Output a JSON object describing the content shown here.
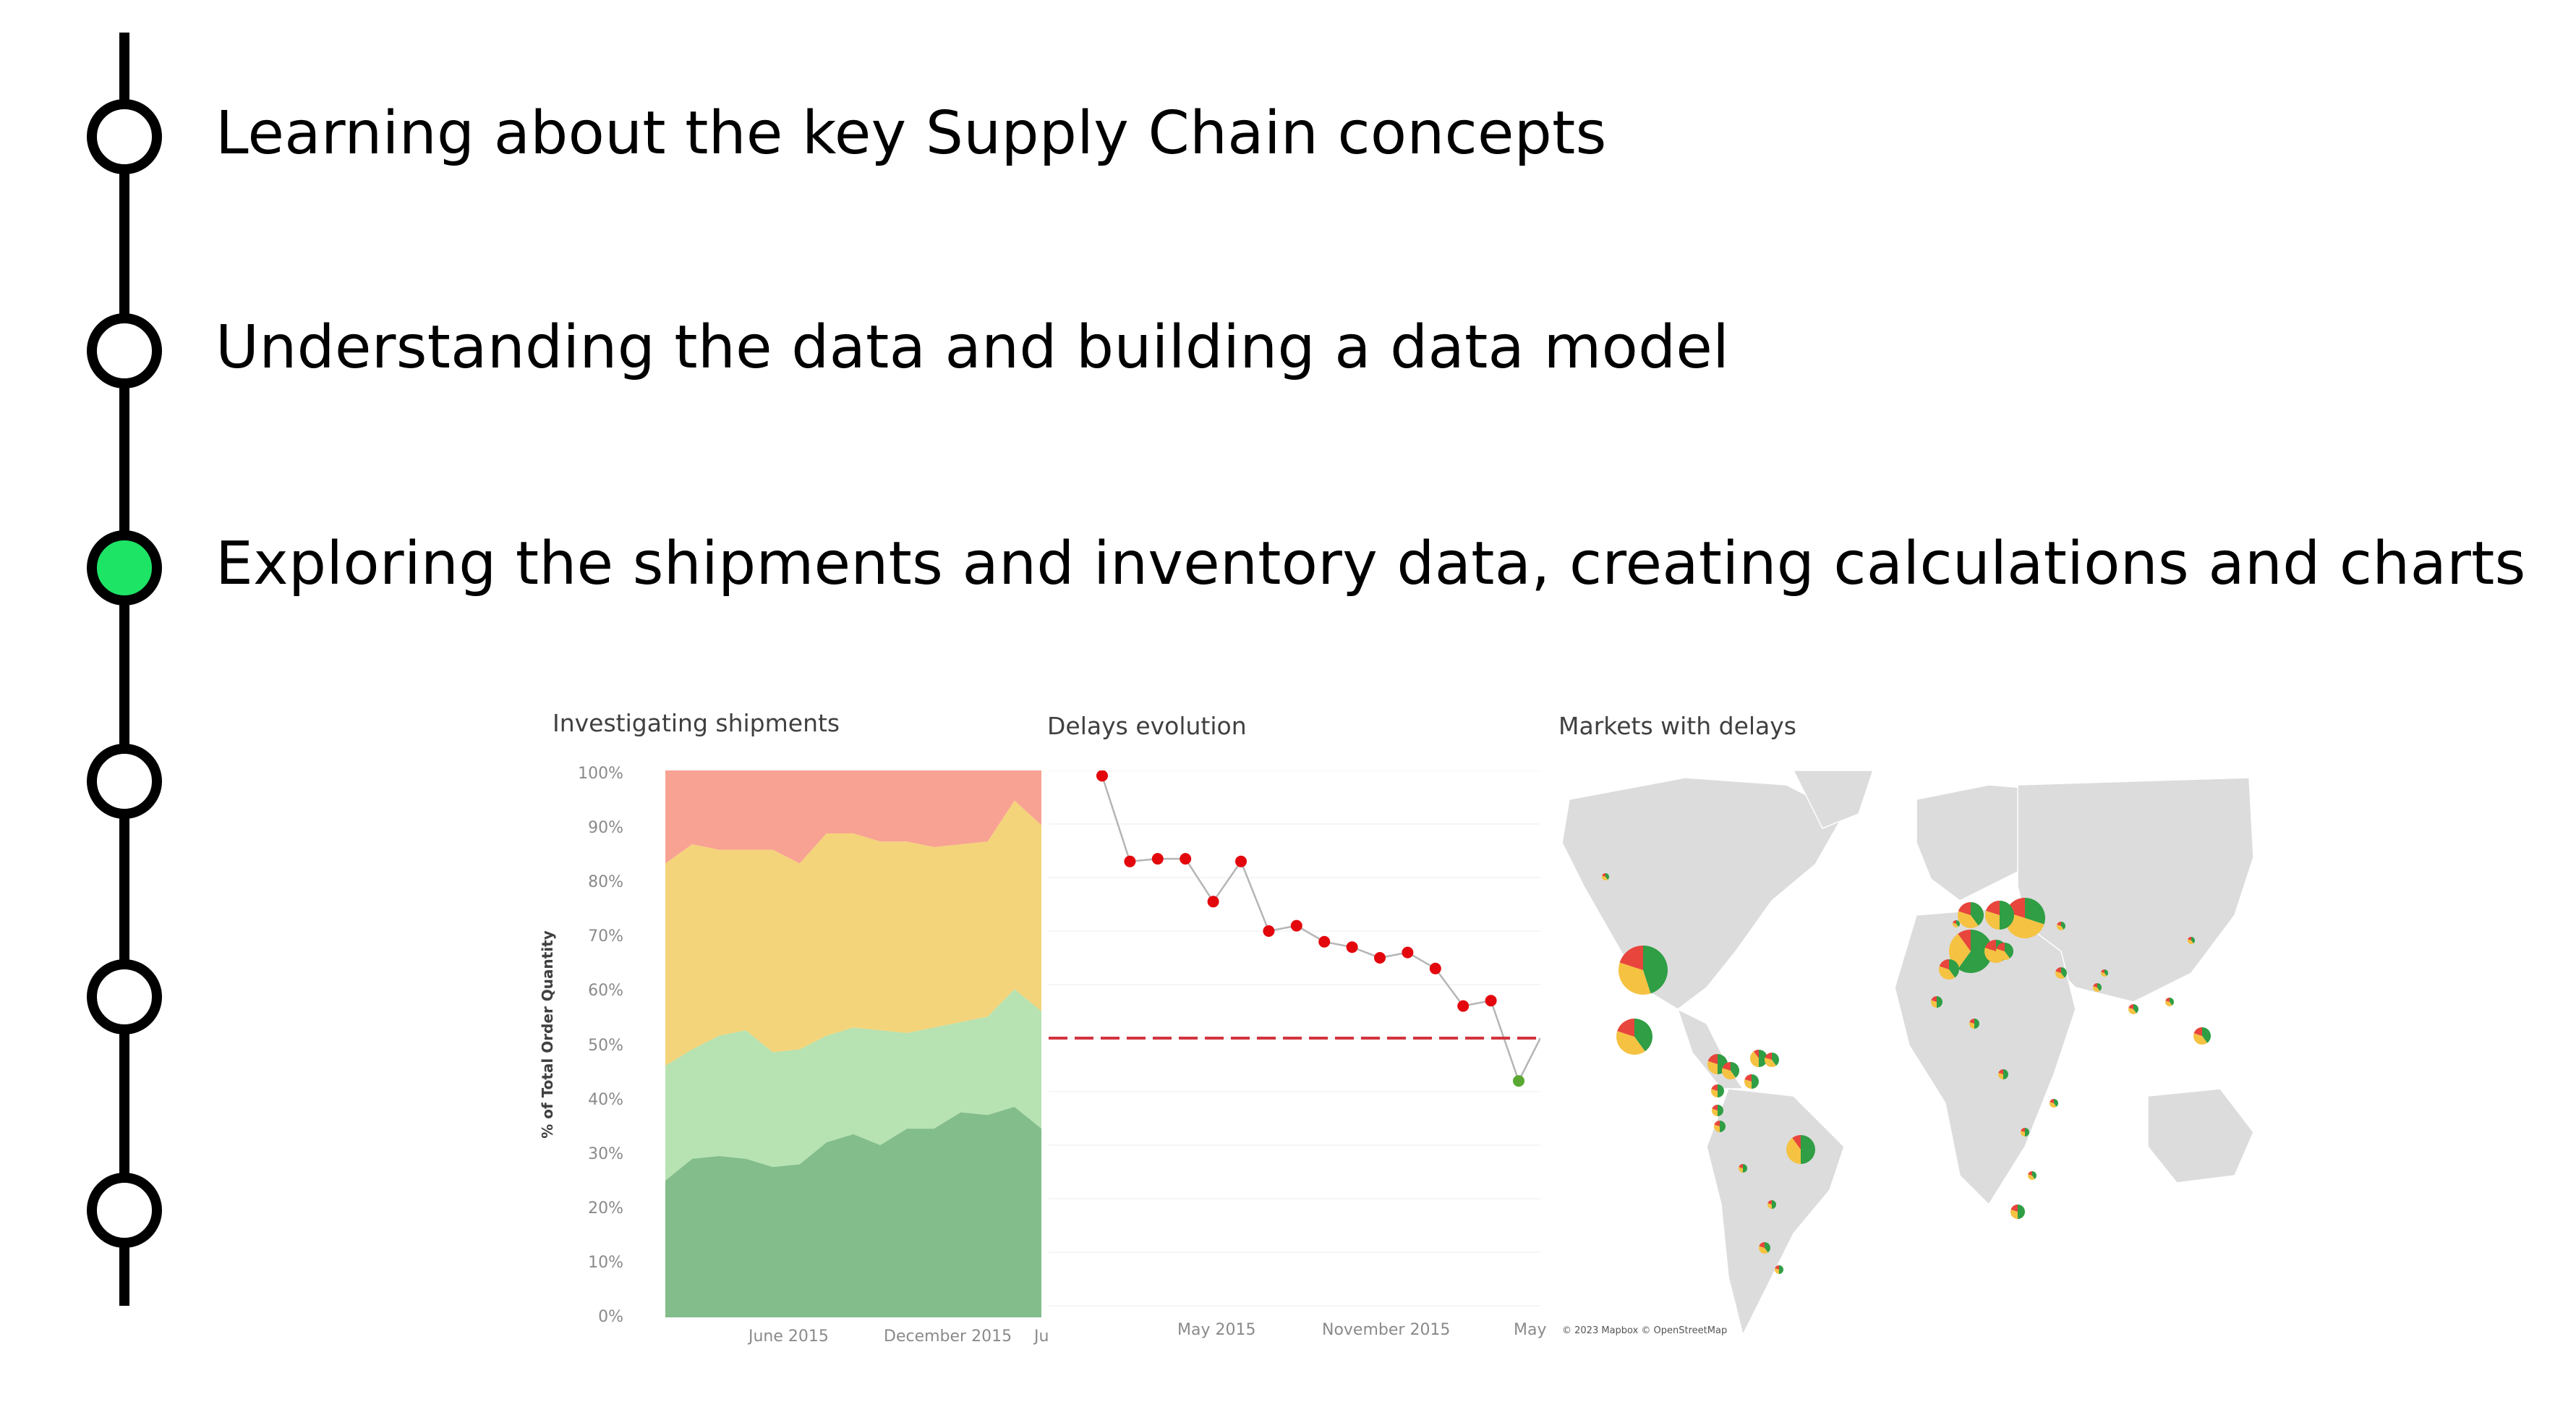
{
  "timeline": {
    "steps": [
      {
        "label": "Learning about the key Supply Chain concepts",
        "active": false
      },
      {
        "label": "Understanding the data and building a data model",
        "active": false
      },
      {
        "label": "Exploring the shipments and inventory data, creating calculations and charts",
        "active": true
      },
      {
        "label": "",
        "active": false
      },
      {
        "label": "",
        "active": false
      },
      {
        "label": "",
        "active": false
      }
    ],
    "active_color": "#1ee466"
  },
  "chart_data": [
    {
      "type": "area",
      "title": "Investigating shipments",
      "ylabel": "% of Total Order Quantity",
      "ylim": [
        0,
        100
      ],
      "yticks": [
        "100%",
        "90%",
        "80%",
        "70%",
        "60%",
        "50%",
        "40%",
        "30%",
        "20%",
        "10%",
        "0%"
      ],
      "xticks": [
        "June 2015",
        "December 2015",
        "Ju"
      ],
      "stacked": true,
      "series": [
        {
          "values": [
            25,
            29,
            29.5,
            29,
            27.5,
            28,
            32,
            33.5,
            31.5,
            34.5,
            34.5,
            37.5,
            37,
            38.5,
            34.5
          ],
          "color": "#82bd8b"
        },
        {
          "values": [
            21,
            20,
            22,
            23.5,
            21,
            21,
            19.5,
            19.5,
            21,
            17.5,
            18.5,
            16.5,
            18,
            21.5,
            21.5
          ],
          "color": "#b7e2b1"
        },
        {
          "values": [
            37,
            37.5,
            34,
            33,
            37,
            34,
            37,
            35.5,
            34.5,
            35,
            33,
            32.5,
            32,
            34.5,
            34
          ],
          "color": "#f4d47a"
        },
        {
          "values": [
            17,
            13.5,
            14.5,
            14.5,
            14.5,
            17,
            11.5,
            11.5,
            13,
            13,
            14,
            13.5,
            13,
            5.5,
            10
          ],
          "color": "#f8a293"
        }
      ]
    },
    {
      "type": "line",
      "title": "Delays evolution",
      "xticks": [
        "May 2015",
        "November 2015",
        "May"
      ],
      "ylim": [
        0,
        100
      ],
      "threshold": 50,
      "values": [
        99,
        83,
        83.5,
        83.5,
        75.5,
        83,
        70,
        71,
        68,
        67,
        65,
        66,
        63,
        56,
        57,
        42
      ],
      "point_colors": [
        "#e3070d",
        "#e3070d",
        "#e3070d",
        "#e3070d",
        "#e3070d",
        "#e3070d",
        "#e3070d",
        "#e3070d",
        "#e3070d",
        "#e3070d",
        "#e3070d",
        "#e3070d",
        "#e3070d",
        "#e3070d",
        "#e3070d",
        "#5aa832"
      ],
      "line_color": "#b5b5b5",
      "threshold_color": "#d1343f"
    },
    {
      "type": "map",
      "title": "Markets with delays",
      "attribution": "© 2023 Mapbox © OpenStreetMap",
      "slice_colors": [
        "#2f9e44",
        "#f5c242",
        "#e8453c"
      ]
    }
  ]
}
